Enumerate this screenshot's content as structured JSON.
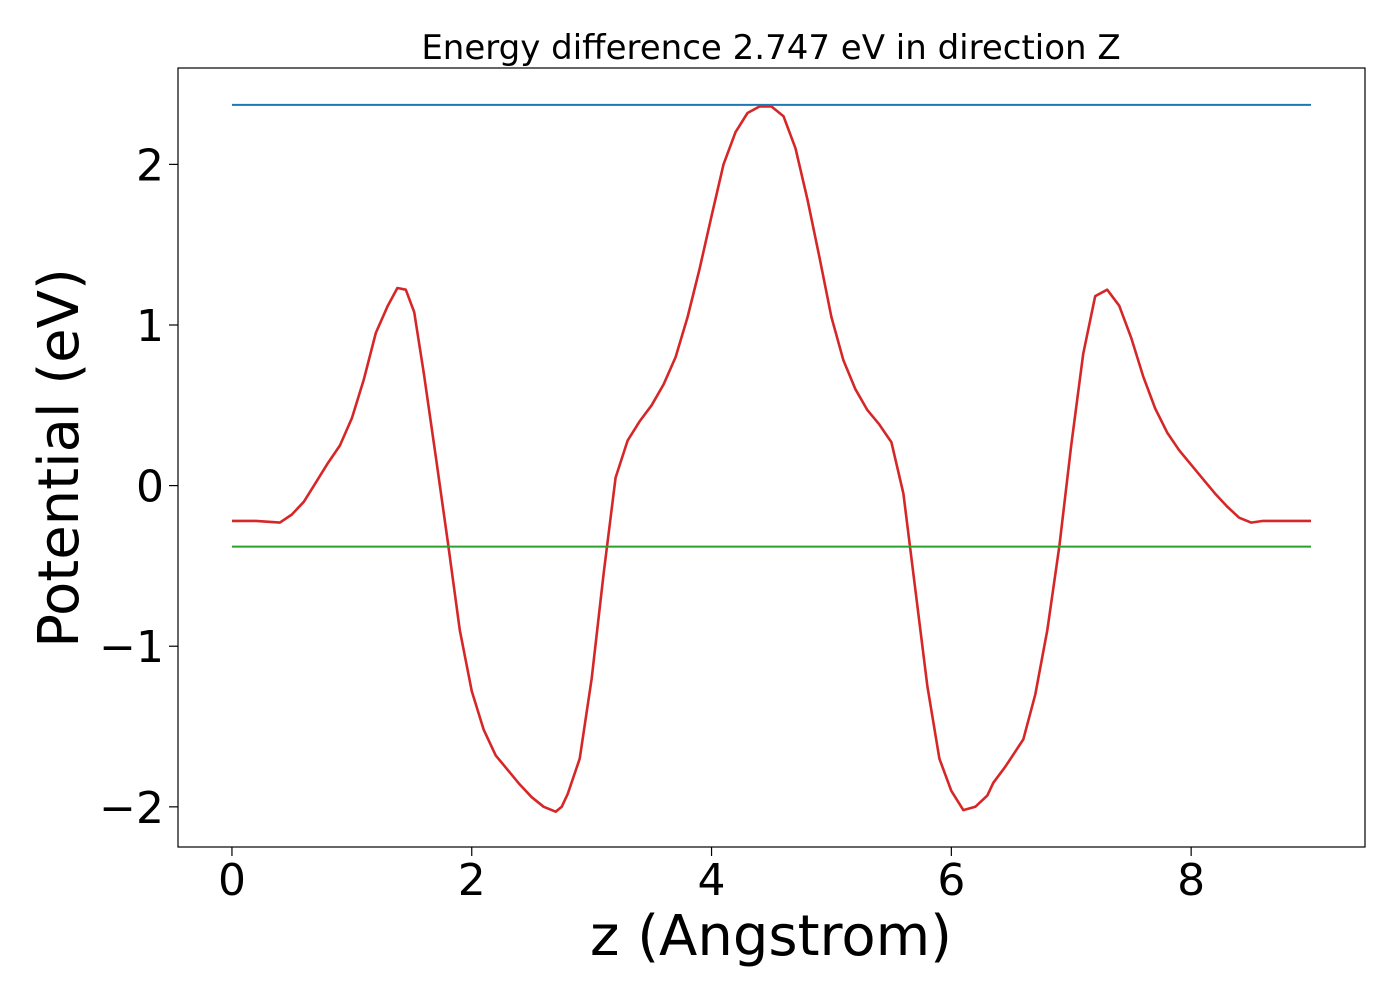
{
  "chart_data": {
    "type": "line",
    "title": "Energy difference 2.747 eV in direction Z",
    "xlabel": "z (Angstrom)",
    "ylabel": "Potential (eV)",
    "xlim": [
      -0.45,
      9.45
    ],
    "ylim": [
      -2.25,
      2.6
    ],
    "xticks": [
      0,
      2,
      4,
      6,
      8
    ],
    "xtick_labels": [
      "0",
      "2",
      "4",
      "6",
      "8"
    ],
    "yticks": [
      -2,
      -1,
      0,
      1,
      2
    ],
    "ytick_labels": [
      "−2",
      "−1",
      "0",
      "1",
      "2"
    ],
    "grid": false,
    "series": [
      {
        "color": "#d62728",
        "style": "solid",
        "x": [
          0.0,
          0.2,
          0.4,
          0.5,
          0.6,
          0.7,
          0.8,
          0.9,
          1.0,
          1.1,
          1.2,
          1.3,
          1.38,
          1.45,
          1.52,
          1.6,
          1.7,
          1.8,
          1.9,
          2.0,
          2.1,
          2.2,
          2.3,
          2.4,
          2.5,
          2.6,
          2.7,
          2.75,
          2.8,
          2.9,
          3.0,
          3.1,
          3.2,
          3.3,
          3.4,
          3.5,
          3.6,
          3.7,
          3.8,
          3.9,
          4.0,
          4.1,
          4.2,
          4.3,
          4.4,
          4.5,
          4.6,
          4.7,
          4.8,
          4.9,
          5.0,
          5.1,
          5.2,
          5.3,
          5.4,
          5.5,
          5.6,
          5.7,
          5.8,
          5.9,
          6.0,
          6.1,
          6.2,
          6.3,
          6.35,
          6.45,
          6.6,
          6.7,
          6.8,
          6.9,
          7.0,
          7.1,
          7.2,
          7.3,
          7.4,
          7.5,
          7.6,
          7.7,
          7.8,
          7.9,
          8.0,
          8.1,
          8.2,
          8.3,
          8.4,
          8.5,
          8.6,
          8.7,
          8.8,
          9.0
        ],
        "y": [
          -0.22,
          -0.22,
          -0.23,
          -0.18,
          -0.1,
          0.02,
          0.14,
          0.25,
          0.42,
          0.66,
          0.95,
          1.12,
          1.23,
          1.22,
          1.08,
          0.7,
          0.18,
          -0.35,
          -0.9,
          -1.28,
          -1.52,
          -1.68,
          -1.77,
          -1.86,
          -1.94,
          -2.0,
          -2.03,
          -2.0,
          -1.92,
          -1.7,
          -1.2,
          -0.55,
          0.05,
          0.28,
          0.4,
          0.5,
          0.63,
          0.8,
          1.05,
          1.35,
          1.68,
          2.0,
          2.2,
          2.32,
          2.36,
          2.36,
          2.3,
          2.1,
          1.78,
          1.42,
          1.05,
          0.78,
          0.6,
          0.47,
          0.38,
          0.27,
          -0.05,
          -0.65,
          -1.25,
          -1.7,
          -1.9,
          -2.02,
          -2.0,
          -1.93,
          -1.85,
          -1.75,
          -1.58,
          -1.3,
          -0.9,
          -0.38,
          0.25,
          0.82,
          1.18,
          1.22,
          1.12,
          0.92,
          0.68,
          0.48,
          0.33,
          0.22,
          0.13,
          0.04,
          -0.05,
          -0.13,
          -0.2,
          -0.23,
          -0.22,
          -0.22,
          -0.22,
          -0.22
        ]
      },
      {
        "color": "#1f77b4",
        "style": "solid",
        "x": [
          0.0,
          9.0
        ],
        "y": [
          2.37,
          2.37
        ]
      },
      {
        "color": "#2ca02c",
        "style": "solid",
        "x": [
          0.0,
          9.0
        ],
        "y": [
          -0.38,
          -0.38
        ]
      }
    ]
  }
}
